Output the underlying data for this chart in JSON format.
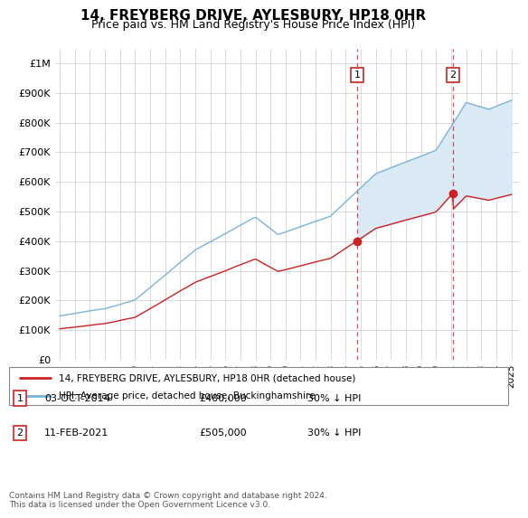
{
  "title": "14, FREYBERG DRIVE, AYLESBURY, HP18 0HR",
  "subtitle": "Price paid vs. HM Land Registry's House Price Index (HPI)",
  "legend_line1": "14, FREYBERG DRIVE, AYLESBURY, HP18 0HR (detached house)",
  "legend_line2": "HPI: Average price, detached house, Buckinghamshire",
  "transaction1_date": "03-OCT-2014",
  "transaction1_price": "£400,000",
  "transaction1_hpi": "30% ↓ HPI",
  "transaction2_date": "11-FEB-2021",
  "transaction2_price": "£505,000",
  "transaction2_hpi": "30% ↓ HPI",
  "footnote": "Contains HM Land Registry data © Crown copyright and database right 2024.\nThis data is licensed under the Open Government Licence v3.0.",
  "hpi_color": "#7ab4d8",
  "price_color": "#cc2222",
  "marker_color": "#cc2222",
  "vline_color": "#cc2222",
  "fill_color": "#daeaf5",
  "background_color": "#ffffff",
  "ylim": [
    0,
    1050000
  ],
  "yticks": [
    0,
    100000,
    200000,
    300000,
    400000,
    500000,
    600000,
    700000,
    800000,
    900000,
    1000000
  ],
  "ytick_labels": [
    "£0",
    "£100K",
    "£200K",
    "£300K",
    "£400K",
    "£500K",
    "£600K",
    "£700K",
    "£800K",
    "£900K",
    "£1M"
  ],
  "transaction1_year": 2014.75,
  "transaction2_year": 2021.1
}
